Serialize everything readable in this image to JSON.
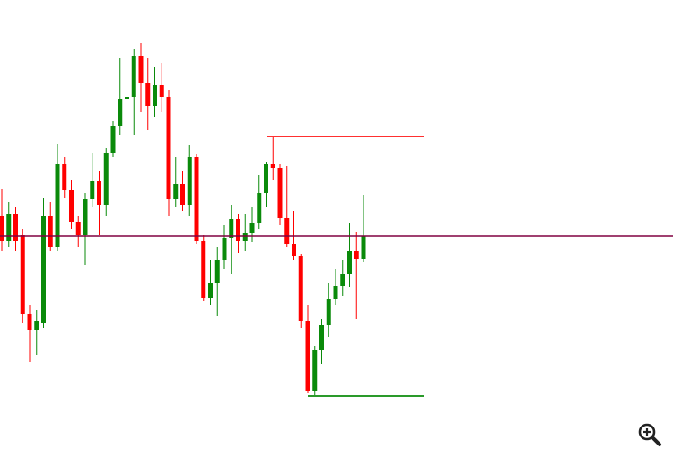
{
  "chart_data": {
    "type": "candlestick",
    "ylim": [
      0,
      510
    ],
    "up_color": "#0a8a0a",
    "down_color": "#ff0000",
    "open": [
      270,
      242,
      272,
      248,
      160,
      142,
      150,
      270,
      235,
      327,
      298,
      263,
      248,
      288,
      308,
      282,
      340,
      370,
      400,
      402,
      448,
      418,
      392,
      415,
      402,
      288,
      305,
      282,
      335,
      242,
      178,
      195,
      220,
      245,
      266,
      242,
      250,
      262,
      295,
      327,
      323,
      267,
      238,
      225,
      153,
      75,
      120,
      148,
      177,
      192,
      205,
      230,
      222
    ],
    "high": [
      300,
      285,
      280,
      255,
      170,
      165,
      290,
      285,
      350,
      335,
      310,
      270,
      295,
      340,
      320,
      345,
      375,
      445,
      425,
      455,
      462,
      445,
      435,
      440,
      410,
      335,
      320,
      348,
      338,
      248,
      220,
      235,
      260,
      282,
      272,
      272,
      280,
      315,
      330,
      358,
      327,
      325,
      275,
      227,
      170,
      125,
      155,
      195,
      210,
      220,
      262,
      252,
      293
    ],
    "low": [
      230,
      235,
      230,
      150,
      107,
      115,
      145,
      230,
      230,
      290,
      255,
      235,
      215,
      280,
      248,
      270,
      335,
      360,
      370,
      360,
      385,
      365,
      380,
      385,
      270,
      280,
      275,
      270,
      238,
      175,
      170,
      158,
      210,
      205,
      228,
      230,
      240,
      255,
      280,
      310,
      260,
      235,
      220,
      145,
      72,
      70,
      105,
      135,
      170,
      180,
      190,
      155,
      218
    ],
    "close": [
      242,
      272,
      242,
      160,
      142,
      152,
      270,
      235,
      327,
      298,
      263,
      248,
      288,
      308,
      282,
      340,
      370,
      400,
      402,
      448,
      418,
      392,
      415,
      402,
      288,
      305,
      282,
      335,
      242,
      178,
      195,
      220,
      245,
      266,
      242,
      250,
      262,
      295,
      327,
      323,
      267,
      238,
      225,
      153,
      75,
      120,
      148,
      177,
      192,
      205,
      230,
      222,
      247
    ],
    "levels": [
      {
        "value": 358,
        "color": "#ff3030"
      },
      {
        "value": 69,
        "color": "#2a9a2a"
      },
      {
        "value": 247,
        "color": "#800040"
      }
    ]
  }
}
